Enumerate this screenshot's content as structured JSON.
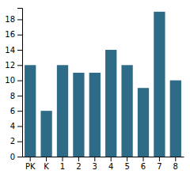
{
  "chart_data": {
    "type": "bar",
    "categories": [
      "PK",
      "K",
      "1",
      "2",
      "3",
      "4",
      "5",
      "6",
      "7",
      "8"
    ],
    "values": [
      12,
      6,
      12,
      11,
      11,
      14,
      12,
      9,
      19,
      10
    ],
    "color": "#2e6b87",
    "ylim": [
      0,
      19.5
    ],
    "yticks": [
      0,
      2,
      4,
      6,
      8,
      10,
      12,
      14,
      16,
      18
    ],
    "grid": false
  }
}
